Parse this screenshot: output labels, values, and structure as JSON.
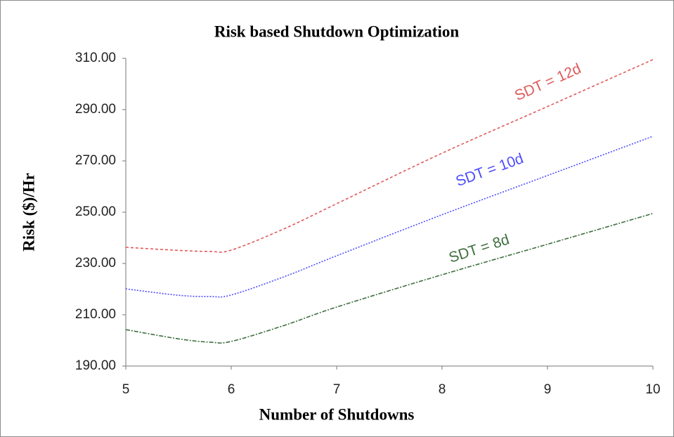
{
  "chart_data": {
    "type": "line",
    "title": "Risk based Shutdown Optimization",
    "xlabel": "Number of Shutdowns",
    "ylabel": "Risk ($)/Hr",
    "x": [
      5,
      5.5,
      5.8,
      6,
      6.5,
      7,
      8,
      9,
      10
    ],
    "series": [
      {
        "name": "SDT = 12d",
        "color": "#e05a5a",
        "dash": "4 3",
        "values": [
          236.3,
          235.1,
          234.7,
          235.2,
          243.5,
          253.3,
          273,
          291.2,
          309.5
        ]
      },
      {
        "name": "SDT = 10d",
        "color": "#4d4dff",
        "dash": "2 2",
        "values": [
          220.1,
          217.6,
          217.1,
          217.7,
          224.8,
          233,
          249,
          264.3,
          279.6
        ]
      },
      {
        "name": "SDT = 8d",
        "color": "#3f6f3f",
        "dash": "6 2 2 2",
        "values": [
          204.2,
          200.6,
          199.3,
          199.6,
          205.8,
          213,
          225.6,
          237.5,
          249.5
        ]
      }
    ],
    "xlim": [
      5,
      10
    ],
    "xticks": [
      5,
      6,
      7,
      8,
      9,
      10
    ],
    "ylim": [
      190,
      310
    ],
    "yticks": [
      {
        "value": 190,
        "label": "190.00"
      },
      {
        "value": 210,
        "label": "210.00"
      },
      {
        "value": 230,
        "label": "230.00"
      },
      {
        "value": 250,
        "label": "250.00"
      },
      {
        "value": 270,
        "label": "270.00"
      },
      {
        "value": 290,
        "label": "290.00"
      },
      {
        "value": 310,
        "label": "310.00"
      }
    ],
    "grid": false
  }
}
